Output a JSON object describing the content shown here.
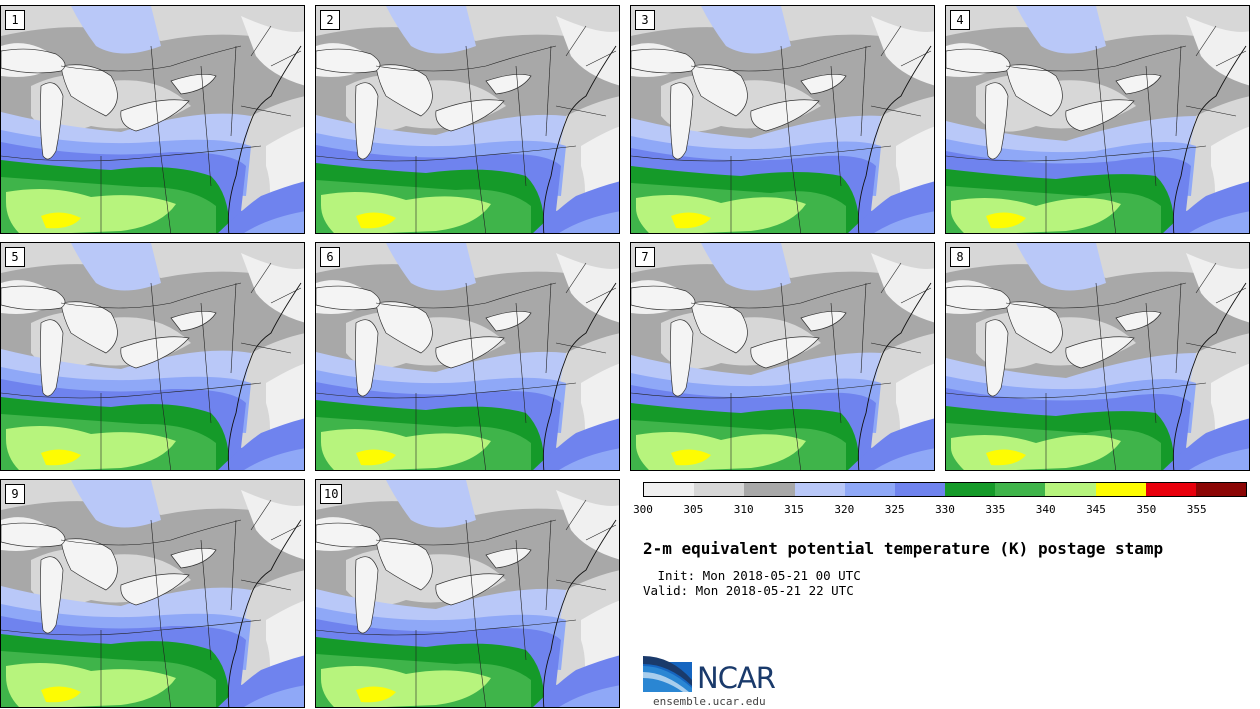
{
  "panels": [
    {
      "label": "1"
    },
    {
      "label": "2"
    },
    {
      "label": "3"
    },
    {
      "label": "4"
    },
    {
      "label": "5"
    },
    {
      "label": "6"
    },
    {
      "label": "7"
    },
    {
      "label": "8"
    },
    {
      "label": "9"
    },
    {
      "label": "10"
    }
  ],
  "colorbar": {
    "ticks": [
      "300",
      "305",
      "310",
      "315",
      "320",
      "325",
      "330",
      "335",
      "340",
      "345",
      "350",
      "355"
    ],
    "colors": [
      "#f0f0f0",
      "#d7d7d7",
      "#a8a8a8",
      "#b9c8f8",
      "#8fa8f7",
      "#6f83ee",
      "#159a29",
      "#3fb44a",
      "#b7f47d",
      "#fefc02",
      "#e8000c",
      "#8b0605"
    ]
  },
  "map_colors": {
    "land_gray": "#a8a8a8",
    "light_gray": "#d7d7d7",
    "very_light": "#f0f0f0",
    "pale_blue": "#b9c8f8",
    "mid_blue": "#8fa8f7",
    "blue": "#6f83ee",
    "dark_green": "#159a29",
    "green": "#3fb44a",
    "light_green": "#b7f47d",
    "yellow": "#fefc02"
  },
  "title": "2-m equivalent potential temperature (K) postage stamp",
  "init": " Init: Mon 2018-05-21 00 UTC",
  "valid": "Valid: Mon 2018-05-21 22 UTC",
  "logo": {
    "text": "NCAR",
    "url": "ensemble.ucar.edu"
  }
}
